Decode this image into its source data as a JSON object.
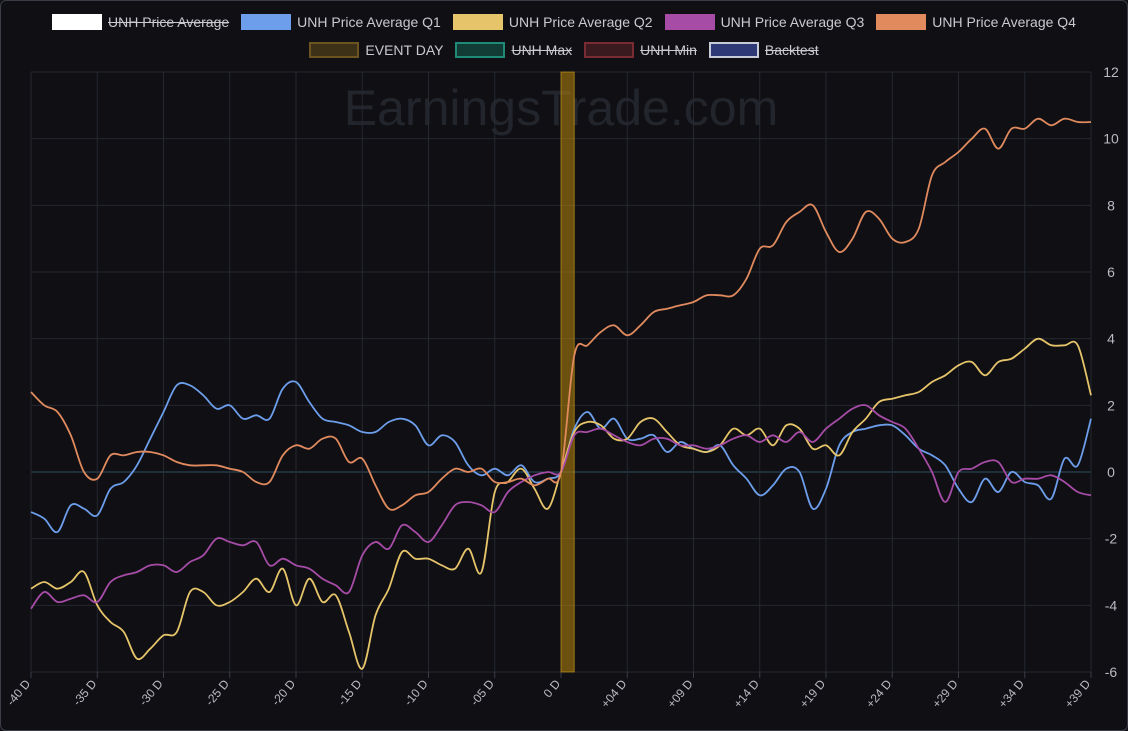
{
  "watermark": "EarningsTrade.com",
  "legend": {
    "row1": [
      {
        "label": "UNH Price Average",
        "color": "#ffffff",
        "fill": "#ffffff",
        "hidden": true
      },
      {
        "label": "UNH Price Average Q1",
        "color": "#6d9eeb",
        "fill": "#6d9eeb",
        "hidden": false
      },
      {
        "label": "UNH Price Average Q2",
        "color": "#e6c46a",
        "fill": "#e6c46a",
        "hidden": false
      },
      {
        "label": "UNH Price Average Q3",
        "color": "#a64ca6",
        "fill": "#a64ca6",
        "hidden": false
      },
      {
        "label": "UNH Price Average Q4",
        "color": "#e08a5e",
        "fill": "#e08a5e",
        "hidden": false
      }
    ],
    "row2": [
      {
        "label": "EVENT DAY",
        "color": "#6b5420",
        "fill": "#3d3118",
        "hidden": false
      },
      {
        "label": "UNH Max",
        "color": "#1f8a78",
        "fill": "#123d37",
        "hidden": true
      },
      {
        "label": "UNH Min",
        "color": "#7a2a32",
        "fill": "#3a1a1f",
        "hidden": true
      },
      {
        "label": "Backtest",
        "color": "#c8ccd8",
        "fill": "#2e3a78",
        "hidden": true
      }
    ]
  },
  "chart_data": {
    "type": "line",
    "x_range": [
      -40,
      40
    ],
    "ylim": [
      -6,
      12
    ],
    "y_ticks": [
      12,
      10,
      8,
      6,
      4,
      2,
      0,
      -2,
      -4,
      -6
    ],
    "x_tick_labels": [
      "-40 D",
      "-35 D",
      "-30 D",
      "-25 D",
      "-20 D",
      "-15 D",
      "-10 D",
      "-05 D",
      "0 D",
      "+04 D",
      "+09 D",
      "+14 D",
      "+19 D",
      "+24 D",
      "+29 D",
      "+34 D",
      "+39 D"
    ],
    "x_tick_values": [
      -40,
      -35,
      -30,
      -25,
      -20,
      -15,
      -10,
      -5,
      0,
      5,
      10,
      15,
      20,
      25,
      30,
      35,
      40
    ],
    "event_day": {
      "x_start": 0,
      "x_end": 1,
      "color": "#b8860b"
    },
    "grid": true,
    "series": [
      {
        "name": "UNH Price Average Q1",
        "color": "#6d9eeb",
        "x": [
          -40,
          -39,
          -38,
          -37,
          -36,
          -35,
          -34,
          -33,
          -32,
          -31,
          -30,
          -29,
          -28,
          -27,
          -26,
          -25,
          -24,
          -23,
          -22,
          -21,
          -20,
          -19,
          -18,
          -17,
          -16,
          -15,
          -14,
          -13,
          -12,
          -11,
          -10,
          -9,
          -8,
          -7,
          -6,
          -5,
          -4,
          -3,
          -2,
          -1,
          0,
          1,
          2,
          3,
          4,
          5,
          6,
          7,
          8,
          9,
          10,
          11,
          12,
          13,
          14,
          15,
          16,
          17,
          18,
          19,
          20,
          21,
          22,
          23,
          24,
          25,
          26,
          27,
          28,
          29,
          30,
          31,
          32,
          33,
          34,
          35,
          36,
          37,
          38,
          39,
          40
        ],
        "y": [
          -1.2,
          -1.4,
          -1.8,
          -1.0,
          -1.1,
          -1.3,
          -0.5,
          -0.3,
          0.2,
          1.0,
          1.8,
          2.6,
          2.6,
          2.3,
          1.9,
          2.0,
          1.6,
          1.7,
          1.6,
          2.5,
          2.7,
          2.1,
          1.6,
          1.5,
          1.4,
          1.2,
          1.2,
          1.5,
          1.6,
          1.4,
          0.8,
          1.1,
          0.9,
          0.2,
          -0.1,
          0.1,
          -0.1,
          0.2,
          -0.3,
          -0.2,
          0.0,
          1.3,
          1.8,
          1.3,
          1.6,
          1.0,
          1.0,
          1.1,
          0.6,
          0.9,
          0.7,
          0.6,
          0.8,
          0.2,
          -0.2,
          -0.7,
          -0.4,
          0.1,
          0.0,
          -1.1,
          -0.5,
          0.8,
          1.2,
          1.3,
          1.4,
          1.4,
          1.1,
          0.7,
          0.5,
          0.2,
          -0.5,
          -0.9,
          -0.2,
          -0.6,
          0.0,
          -0.3,
          -0.4,
          -0.8,
          0.4,
          0.2,
          1.6
        ]
      },
      {
        "name": "UNH Price Average Q2",
        "color": "#e6c46a",
        "x": [
          -40,
          -39,
          -38,
          -37,
          -36,
          -35,
          -34,
          -33,
          -32,
          -31,
          -30,
          -29,
          -28,
          -27,
          -26,
          -25,
          -24,
          -23,
          -22,
          -21,
          -20,
          -19,
          -18,
          -17,
          -16,
          -15,
          -14,
          -13,
          -12,
          -11,
          -10,
          -9,
          -8,
          -7,
          -6,
          -5,
          -4,
          -3,
          -2,
          -1,
          0,
          1,
          2,
          3,
          4,
          5,
          6,
          7,
          8,
          9,
          10,
          11,
          12,
          13,
          14,
          15,
          16,
          17,
          18,
          19,
          20,
          21,
          22,
          23,
          24,
          25,
          26,
          27,
          28,
          29,
          30,
          31,
          32,
          33,
          34,
          35,
          36,
          37,
          38,
          39,
          40
        ],
        "y": [
          -3.5,
          -3.3,
          -3.5,
          -3.3,
          -3.0,
          -4.0,
          -4.5,
          -4.8,
          -5.6,
          -5.3,
          -4.9,
          -4.8,
          -3.6,
          -3.6,
          -4.0,
          -3.9,
          -3.6,
          -3.2,
          -3.6,
          -2.9,
          -4.0,
          -3.2,
          -3.9,
          -3.7,
          -4.8,
          -5.9,
          -4.3,
          -3.5,
          -2.4,
          -2.6,
          -2.6,
          -2.8,
          -2.9,
          -2.3,
          -3.0,
          -0.6,
          -0.3,
          0.1,
          -0.5,
          -1.1,
          0.0,
          1.2,
          1.5,
          1.4,
          1.0,
          1.0,
          1.5,
          1.6,
          1.2,
          0.8,
          0.7,
          0.6,
          0.8,
          1.3,
          1.1,
          1.3,
          0.8,
          1.4,
          1.3,
          0.7,
          0.8,
          0.5,
          1.2,
          1.6,
          2.1,
          2.2,
          2.3,
          2.4,
          2.7,
          2.9,
          3.2,
          3.3,
          2.9,
          3.3,
          3.4,
          3.7,
          4.0,
          3.8,
          3.8,
          3.8,
          2.3
        ]
      },
      {
        "name": "UNH Price Average Q3",
        "color": "#a64ca6",
        "x": [
          -40,
          -39,
          -38,
          -37,
          -36,
          -35,
          -34,
          -33,
          -32,
          -31,
          -30,
          -29,
          -28,
          -27,
          -26,
          -25,
          -24,
          -23,
          -22,
          -21,
          -20,
          -19,
          -18,
          -17,
          -16,
          -15,
          -14,
          -13,
          -12,
          -11,
          -10,
          -9,
          -8,
          -7,
          -6,
          -5,
          -4,
          -3,
          -2,
          -1,
          0,
          1,
          2,
          3,
          4,
          5,
          6,
          7,
          8,
          9,
          10,
          11,
          12,
          13,
          14,
          15,
          16,
          17,
          18,
          19,
          20,
          21,
          22,
          23,
          24,
          25,
          26,
          27,
          28,
          29,
          30,
          31,
          32,
          33,
          34,
          35,
          36,
          37,
          38,
          39,
          40
        ],
        "y": [
          -4.1,
          -3.6,
          -3.9,
          -3.8,
          -3.7,
          -3.9,
          -3.3,
          -3.1,
          -3.0,
          -2.8,
          -2.8,
          -3.0,
          -2.7,
          -2.5,
          -2.0,
          -2.1,
          -2.2,
          -2.1,
          -2.8,
          -2.6,
          -2.8,
          -2.9,
          -3.2,
          -3.4,
          -3.6,
          -2.5,
          -2.1,
          -2.3,
          -1.6,
          -1.8,
          -2.1,
          -1.6,
          -1.0,
          -0.9,
          -1.0,
          -1.2,
          -0.6,
          -0.3,
          -0.1,
          0.0,
          0.0,
          1.1,
          1.2,
          1.3,
          1.1,
          0.9,
          0.8,
          1.0,
          1.0,
          0.8,
          0.8,
          0.7,
          0.8,
          1.0,
          1.1,
          0.9,
          1.1,
          0.9,
          1.2,
          0.9,
          1.3,
          1.6,
          1.9,
          2.0,
          1.7,
          1.5,
          1.3,
          0.7,
          0.0,
          -0.9,
          0.0,
          0.1,
          0.3,
          0.3,
          -0.3,
          -0.2,
          -0.2,
          -0.1,
          -0.3,
          -0.6,
          -0.7
        ]
      },
      {
        "name": "UNH Price Average Q4",
        "color": "#e08a5e",
        "x": [
          -40,
          -39,
          -38,
          -37,
          -36,
          -35,
          -34,
          -33,
          -32,
          -31,
          -30,
          -29,
          -28,
          -27,
          -26,
          -25,
          -24,
          -23,
          -22,
          -21,
          -20,
          -19,
          -18,
          -17,
          -16,
          -15,
          -14,
          -13,
          -12,
          -11,
          -10,
          -9,
          -8,
          -7,
          -6,
          -5,
          -4,
          -3,
          -2,
          -1,
          0,
          1,
          2,
          3,
          4,
          5,
          6,
          7,
          8,
          9,
          10,
          11,
          12,
          13,
          14,
          15,
          16,
          17,
          18,
          19,
          20,
          21,
          22,
          23,
          24,
          25,
          26,
          27,
          28,
          29,
          30,
          31,
          32,
          33,
          34,
          35,
          36,
          37,
          38,
          39,
          40
        ],
        "y": [
          2.4,
          2.0,
          1.8,
          1.1,
          0.0,
          -0.2,
          0.5,
          0.5,
          0.6,
          0.6,
          0.5,
          0.3,
          0.2,
          0.2,
          0.2,
          0.1,
          0.0,
          -0.3,
          -0.3,
          0.5,
          0.8,
          0.7,
          1.0,
          1.0,
          0.3,
          0.4,
          -0.4,
          -1.1,
          -1.0,
          -0.7,
          -0.6,
          -0.2,
          0.1,
          0.0,
          0.1,
          -0.3,
          -0.3,
          -0.2,
          -0.4,
          -0.2,
          0.0,
          3.5,
          3.8,
          4.2,
          4.4,
          4.1,
          4.4,
          4.8,
          4.9,
          5.0,
          5.1,
          5.3,
          5.3,
          5.3,
          5.8,
          6.7,
          6.8,
          7.5,
          7.8,
          8.0,
          7.2,
          6.6,
          7.0,
          7.8,
          7.6,
          7.0,
          6.9,
          7.3,
          8.9,
          9.3,
          9.6,
          10.0,
          10.3,
          9.7,
          10.3,
          10.3,
          10.6,
          10.4,
          10.6,
          10.5,
          10.5
        ]
      }
    ]
  }
}
